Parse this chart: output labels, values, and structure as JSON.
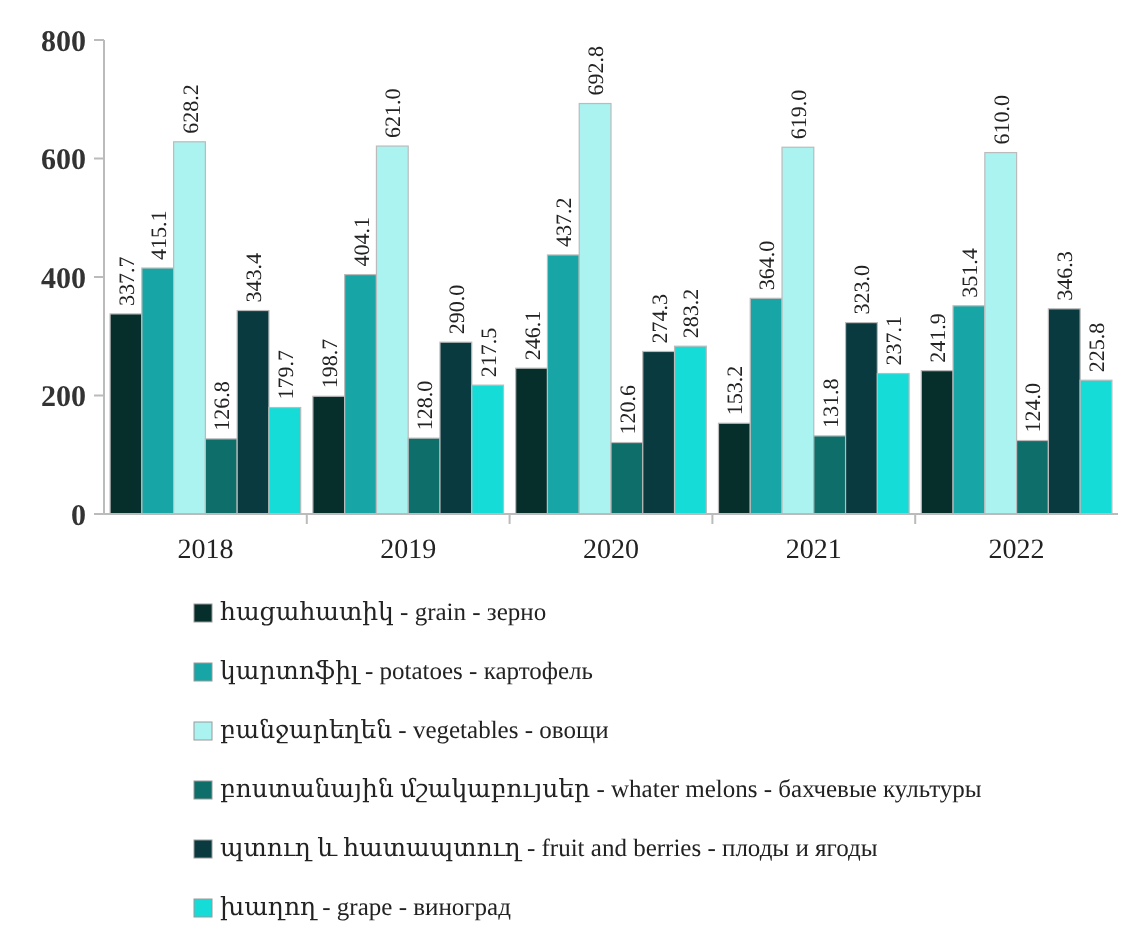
{
  "chart_data": {
    "type": "bar",
    "categories": [
      "2018",
      "2019",
      "2020",
      "2021",
      "2022"
    ],
    "series": [
      {
        "name": "հացահատիկ - grain - зерно",
        "color": "#062e2b",
        "values": [
          337.7,
          198.7,
          246.1,
          153.2,
          241.9
        ],
        "value_labels": [
          "337.7",
          "198.7",
          "246.1",
          "153.2",
          "241.9"
        ]
      },
      {
        "name": "կարտոֆիլ - potatoes - картофель",
        "color": "#17a5a5",
        "values": [
          415.1,
          404.1,
          437.2,
          364.0,
          351.4
        ],
        "value_labels": [
          "415.1",
          "404.1",
          "437.2",
          "364.0",
          "351.4"
        ]
      },
      {
        "name": "բանջարեղեն - vegetables - овощи",
        "color": "#aaf3f0",
        "values": [
          628.2,
          621.0,
          692.8,
          619.0,
          610.0
        ],
        "value_labels": [
          "628.2",
          "621.0",
          "692.8",
          "619.0",
          "610.0"
        ]
      },
      {
        "name": "բոստանային մշակաբույսեր - whater melons - бахчевые культуры",
        "color": "#0e6e6a",
        "values": [
          126.8,
          128.0,
          120.6,
          131.8,
          124.0
        ],
        "value_labels": [
          "126.8",
          "128.0",
          "120.6",
          "131.8",
          "124.0"
        ]
      },
      {
        "name": "պտուղ և հատապտուղ - fruit and berries - плоды и ягоды",
        "color": "#083a40",
        "values": [
          343.4,
          290.0,
          274.3,
          323.0,
          346.3
        ],
        "value_labels": [
          "343.4",
          "290.0",
          "274.3",
          "323.0",
          "346.3"
        ]
      },
      {
        "name": "խաղող - grape - виноград",
        "color": "#16dcd8",
        "values": [
          179.7,
          217.5,
          283.2,
          237.1,
          225.8
        ],
        "value_labels": [
          "179.7",
          "217.5",
          "283.2",
          "237.1",
          "225.8"
        ]
      }
    ],
    "ylim": [
      0,
      800
    ],
    "yticks": [
      0,
      200,
      400,
      600,
      800
    ],
    "grid": false,
    "legend": "bottom"
  }
}
